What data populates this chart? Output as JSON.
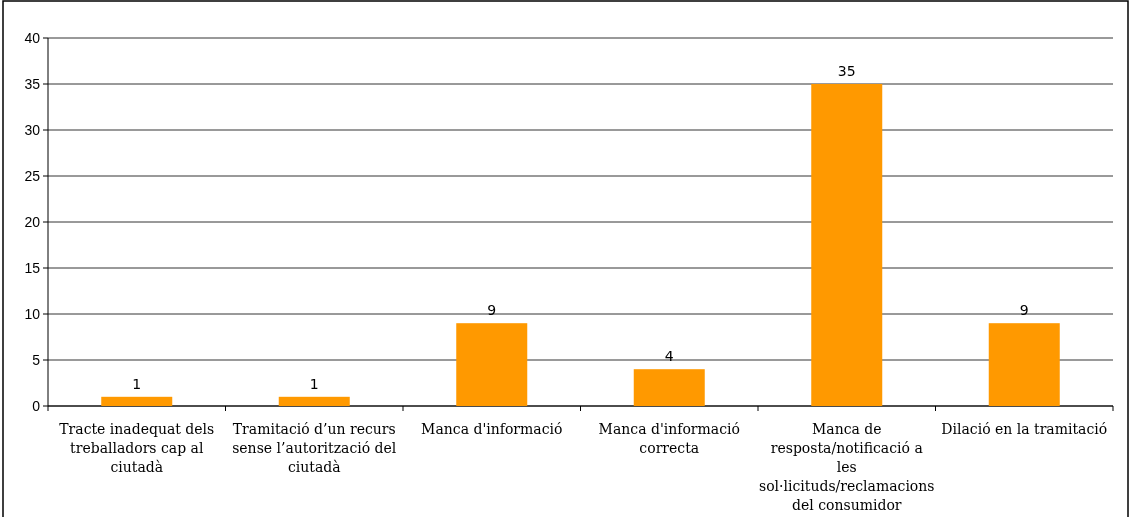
{
  "chart_data": {
    "type": "bar",
    "categories": [
      "Tracte inadequat dels treballadors cap al ciutadà",
      "Tramitació d’un recurs sense l’autorització del ciutadà",
      "Manca d'informació",
      "Manca d'informació correcta",
      "Manca de resposta/notificació a les sol·licituds/reclamacions del consumidor",
      "Dilació en la tramitació"
    ],
    "values": [
      1,
      1,
      9,
      4,
      35,
      9
    ],
    "color": "#ff9900",
    "ylim": [
      0,
      40
    ],
    "yticks": [
      0,
      5,
      10,
      15,
      20,
      25,
      30,
      35,
      40
    ],
    "grid": "y",
    "data_labels": true
  }
}
